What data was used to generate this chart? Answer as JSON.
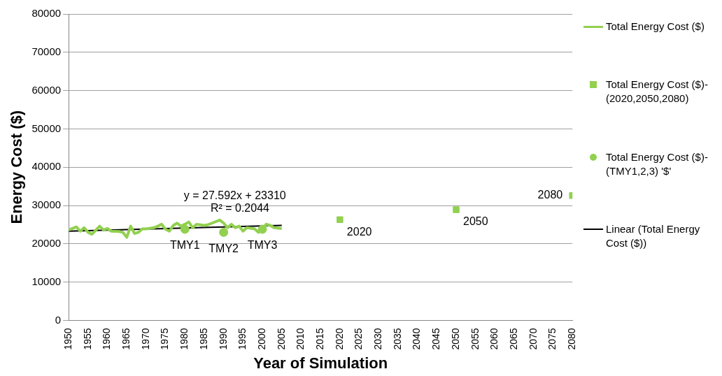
{
  "chart_data": {
    "type": "line",
    "xlabel": "Year of Simulation",
    "ylabel": "Energy Cost ($)",
    "xlim": [
      1950,
      2080
    ],
    "xticks": [
      1950,
      1955,
      1960,
      1965,
      1970,
      1975,
      1980,
      1985,
      1990,
      1995,
      2000,
      2005,
      2010,
      2015,
      2020,
      2025,
      2030,
      2035,
      2040,
      2045,
      2050,
      2055,
      2060,
      2065,
      2070,
      2075,
      2080
    ],
    "ylim": [
      0,
      80000
    ],
    "yticks": [
      0,
      10000,
      20000,
      30000,
      40000,
      50000,
      60000,
      70000,
      80000
    ],
    "grid": "y",
    "legend": "right",
    "series": [
      {
        "name": "Total Energy Cost ($)",
        "color": "#92d050",
        "marker": "none",
        "x": [
          1950,
          1952,
          1953,
          1954,
          1955,
          1956,
          1958,
          1959,
          1960,
          1961,
          1963,
          1964,
          1965,
          1966,
          1967,
          1968,
          1969,
          1970,
          1972,
          1973,
          1974,
          1975,
          1976,
          1977,
          1978,
          1979,
          1980,
          1981,
          1982,
          1983,
          1985,
          1986,
          1987,
          1989,
          1990,
          1991,
          1992,
          1993,
          1994,
          1995,
          1996,
          1998,
          1999,
          2000,
          2001,
          2002,
          2003,
          2005
        ],
        "values": [
          23600,
          24400,
          23300,
          24200,
          23000,
          22500,
          24600,
          23600,
          24000,
          23300,
          23200,
          23000,
          21700,
          24600,
          22700,
          23000,
          23900,
          23900,
          24200,
          24600,
          25100,
          23800,
          23300,
          24800,
          25400,
          24600,
          25100,
          25700,
          24200,
          25100,
          24800,
          25000,
          25400,
          26200,
          25400,
          24200,
          25100,
          24200,
          24600,
          23300,
          24200,
          23900,
          23000,
          23900,
          25100,
          24800,
          24200,
          24000
        ]
      },
      {
        "name": "Total Energy Cost ($)-(2020,2050,2080)",
        "type": "scatter",
        "color": "#92d050",
        "marker": "square",
        "x": [
          2020,
          2050,
          2080
        ],
        "values": [
          26300,
          28900,
          32600
        ]
      },
      {
        "name": "Total Energy Cost ($)-(TMY1,2,3) '$'",
        "type": "scatter",
        "color": "#92d050",
        "marker": "circle",
        "x": [
          1980,
          1990,
          2000
        ],
        "values": [
          23800,
          23000,
          23800
        ]
      },
      {
        "name": "Linear (Total Energy Cost ($))",
        "color": "#000000",
        "marker": "none",
        "x": [
          1950,
          2005
        ],
        "values": [
          23300,
          24800
        ]
      }
    ],
    "annotations": [
      "y = 27.592x + 23310",
      "R² = 0.2044",
      {
        "text": "TMY1",
        "x": 1980,
        "y": 23800
      },
      {
        "text": "TMY2",
        "x": 1990,
        "y": 23000
      },
      {
        "text": "TMY3",
        "x": 2000,
        "y": 23800
      },
      {
        "text": "2020",
        "x": 2020,
        "y": 26300
      },
      {
        "text": "2050",
        "x": 2050,
        "y": 28900
      },
      {
        "text": "2080",
        "x": 2080,
        "y": 32600
      }
    ]
  }
}
